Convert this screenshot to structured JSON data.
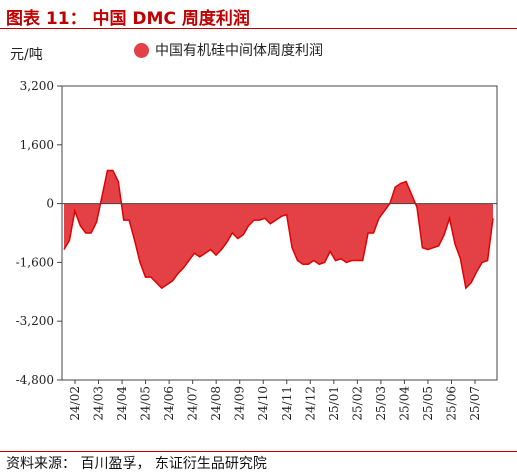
{
  "title": "图表 11： 中国 DMC 周度利润",
  "unit_label": "元/吨",
  "source": "资料来源： 百川盈孚， 东证衍生品研究院",
  "colors": {
    "accent": "#c00000",
    "fill": "#e34146",
    "line": "#e00000"
  },
  "chart_data": {
    "type": "area",
    "title": "图表 11： 中国 DMC 周度利润",
    "ylabel": "元/吨",
    "ylim": [
      -4800,
      3200
    ],
    "yticks": [
      3200,
      1600,
      0,
      -1600,
      -3200,
      -4800
    ],
    "ytick_labels": [
      "3,200",
      "1,600",
      "0",
      "-1,600",
      "-3,200",
      "-4,800"
    ],
    "xtick_labels": [
      "24/02",
      "24/03",
      "24/04",
      "24/05",
      "24/06",
      "24/07",
      "24/08",
      "24/09",
      "24/10",
      "24/11",
      "24/12",
      "25/01",
      "25/02",
      "25/03",
      "25/04",
      "25/05",
      "25/06",
      "25/07"
    ],
    "series": [
      {
        "name": "中国有机硅中间体周度利润",
        "values": [
          -1250,
          -1000,
          -200,
          -600,
          -800,
          -800,
          -500,
          200,
          900,
          900,
          600,
          -450,
          -450,
          -1000,
          -1600,
          -2000,
          -2000,
          -2150,
          -2300,
          -2200,
          -2100,
          -1900,
          -1750,
          -1550,
          -1350,
          -1450,
          -1350,
          -1250,
          -1400,
          -1250,
          -1050,
          -800,
          -950,
          -850,
          -600,
          -450,
          -450,
          -400,
          -550,
          -450,
          -350,
          -300,
          -1200,
          -1550,
          -1650,
          -1650,
          -1550,
          -1650,
          -1600,
          -1300,
          -1550,
          -1500,
          -1600,
          -1550,
          -1550,
          -1550,
          -800,
          -800,
          -400,
          -200,
          0,
          450,
          550,
          600,
          250,
          -100,
          -1200,
          -1250,
          -1200,
          -1150,
          -850,
          -400,
          -1100,
          -1500,
          -2300,
          -2150,
          -1850,
          -1600,
          -1550,
          -400
        ]
      }
    ]
  }
}
